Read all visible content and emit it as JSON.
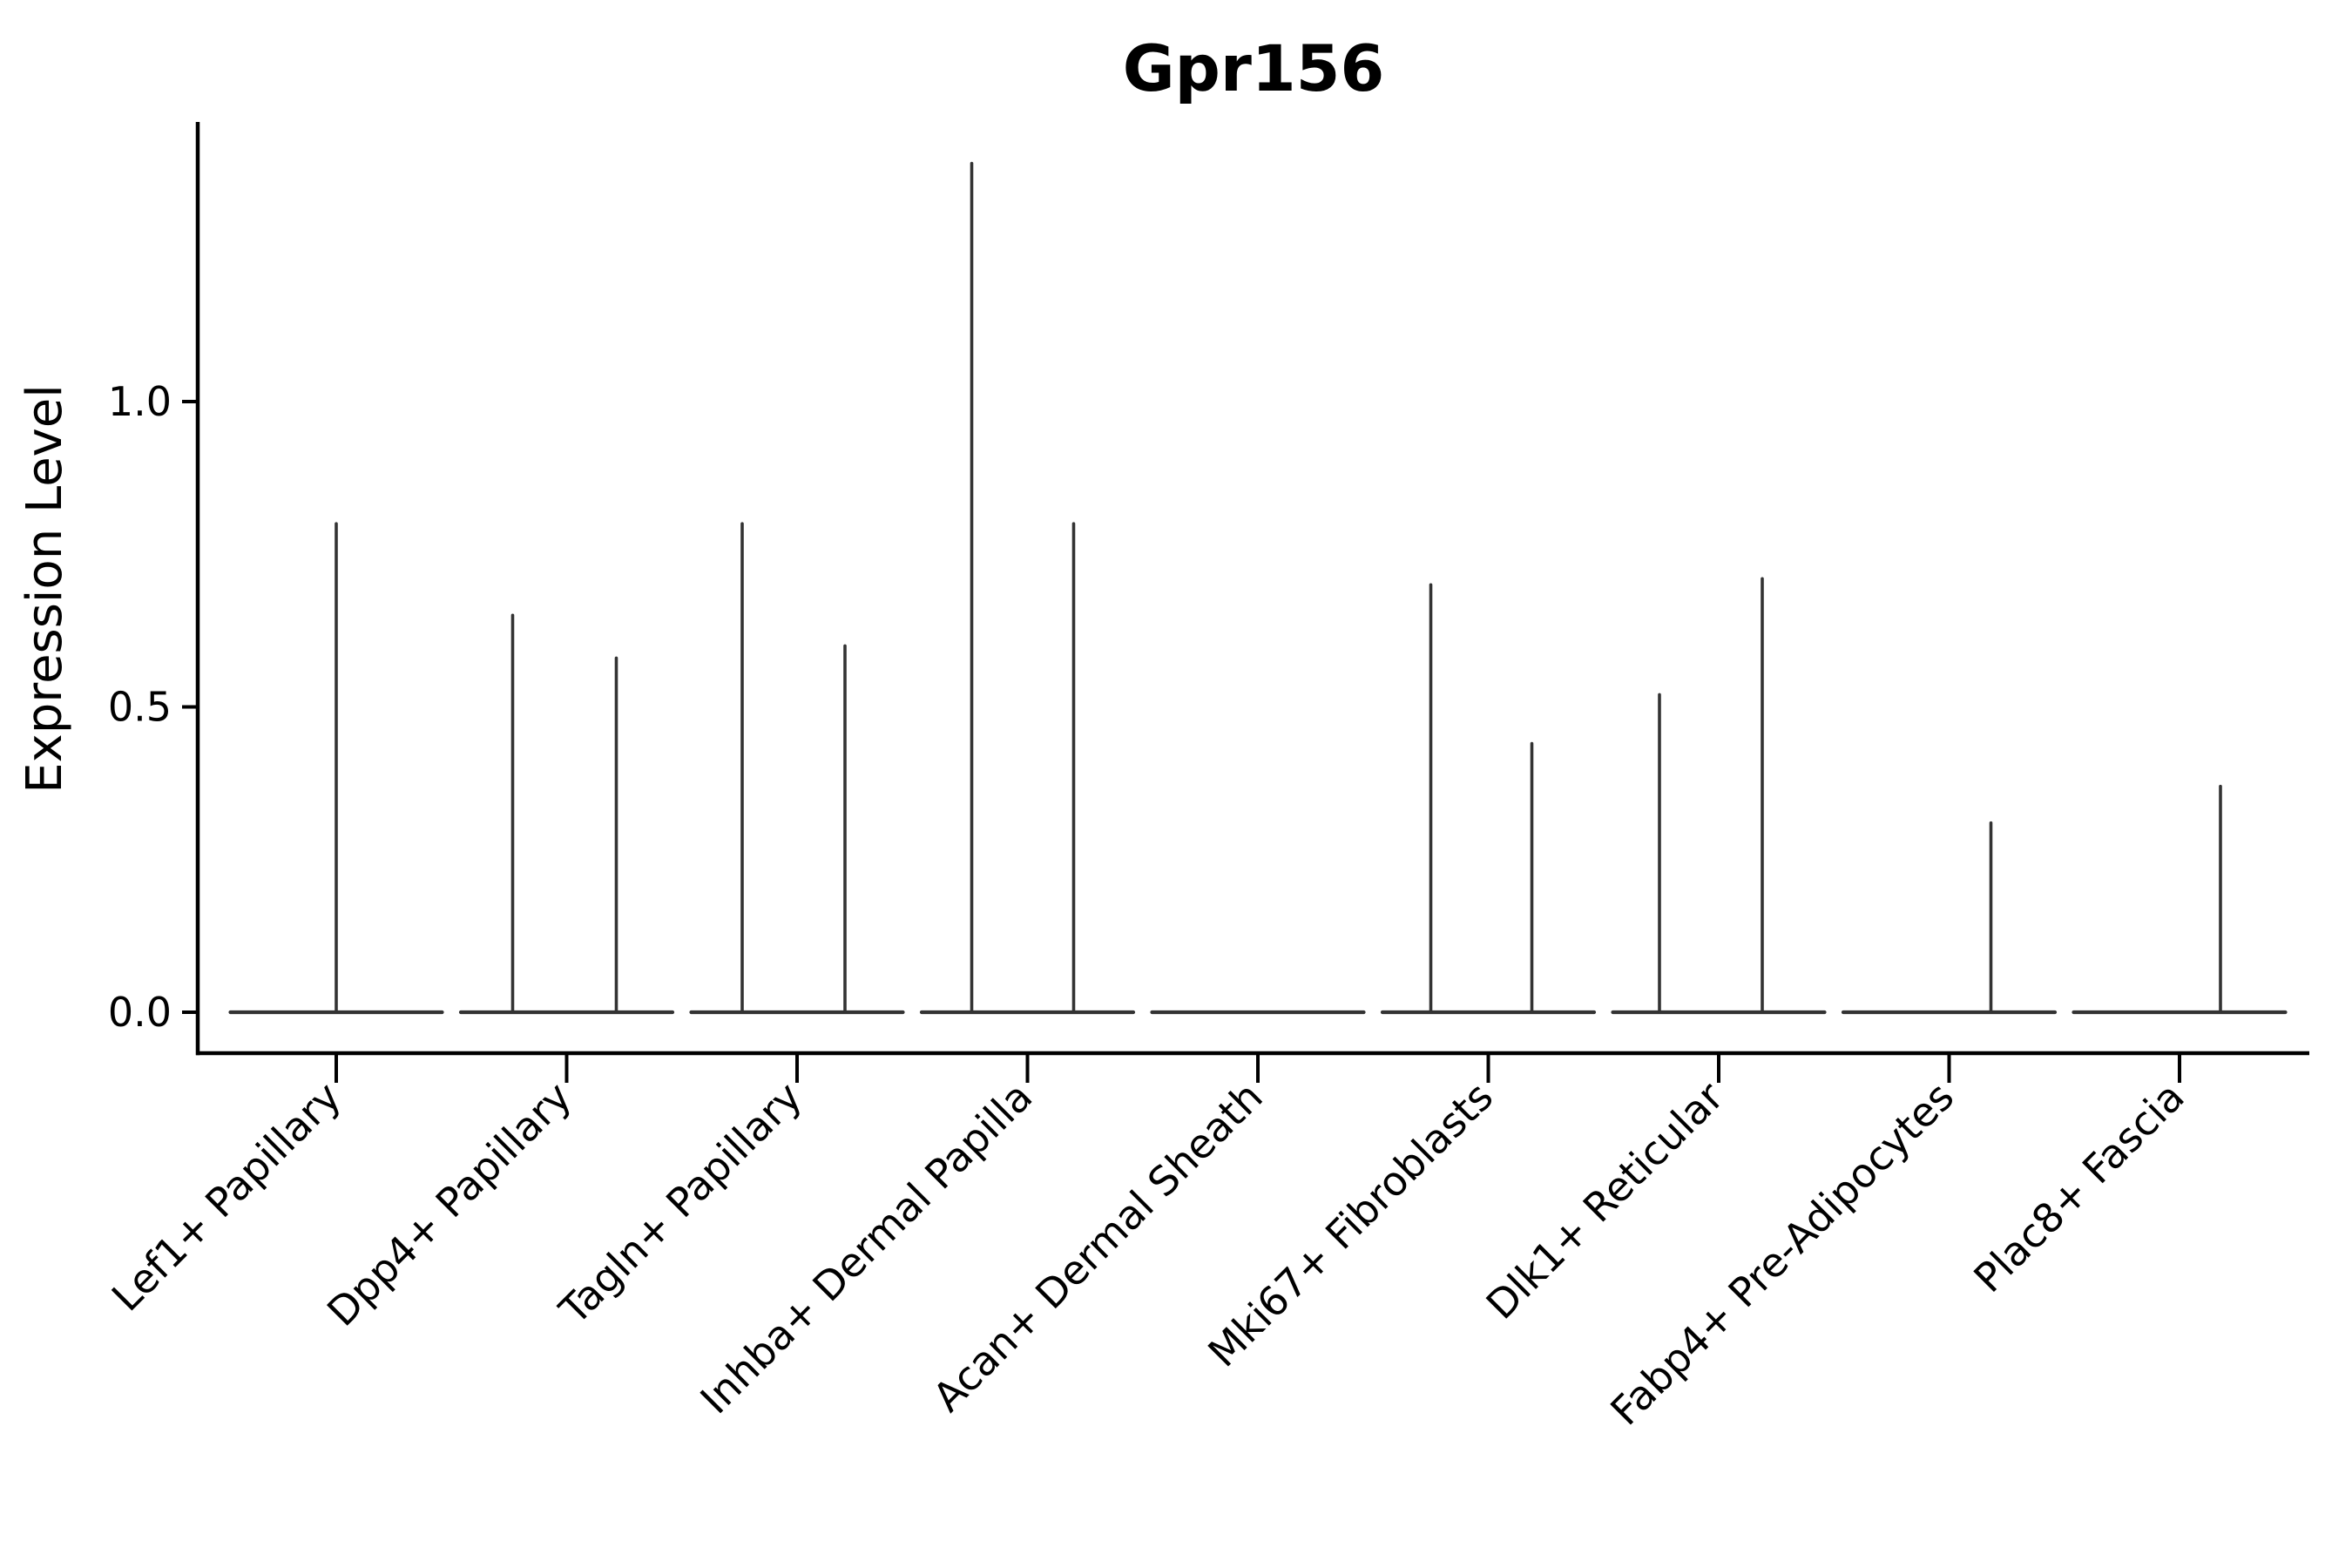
{
  "chart_data": {
    "type": "violin",
    "title": "Gpr156",
    "xlabel": "",
    "ylabel": "Expression Level",
    "yticks": [
      "0.0",
      "0.5",
      "1.0"
    ],
    "ytick_values": [
      0.0,
      0.5,
      1.0
    ],
    "ylim": [
      -0.067,
      1.457
    ],
    "grid": false,
    "legend": "none",
    "style": "flat violins at zero with thin max spikes, despined top/right",
    "categories": [
      {
        "label": "Lef1+ Papillary",
        "violins": [
          {
            "pos": 0,
            "max": 0.8
          }
        ]
      },
      {
        "label": "Dpp4+ Papillary",
        "violins": [
          {
            "pos": -62,
            "max": 0.65
          },
          {
            "pos": 57,
            "max": 0.58
          }
        ]
      },
      {
        "label": "Tagln+ Papillary",
        "violins": [
          {
            "pos": -63,
            "max": 0.8
          },
          {
            "pos": 55,
            "max": 0.6
          }
        ]
      },
      {
        "label": "Inhba+ Dermal Papilla",
        "violins": [
          {
            "pos": -64,
            "max": 1.39
          },
          {
            "pos": 53,
            "max": 0.8
          }
        ]
      },
      {
        "label": "Acan+ Dermal Sheath",
        "violins": []
      },
      {
        "label": "Mki67+ Fibroblasts",
        "violins": [
          {
            "pos": -66,
            "max": 0.7
          },
          {
            "pos": 50,
            "max": 0.44
          }
        ]
      },
      {
        "label": "Dlk1+ Reticular",
        "violins": [
          {
            "pos": -68,
            "max": 0.52
          },
          {
            "pos": 50,
            "max": 0.71
          }
        ]
      },
      {
        "label": "Fabp4+ Pre-Adipocytes",
        "violins": [
          {
            "pos": 48,
            "max": 0.31
          }
        ]
      },
      {
        "label": "Plac8+ Fascia",
        "violins": [
          {
            "pos": 47,
            "max": 0.37
          }
        ]
      }
    ],
    "colors": {
      "violin": "#333333",
      "axis": "#000000",
      "text": "#000000",
      "background": "#ffffff"
    }
  }
}
